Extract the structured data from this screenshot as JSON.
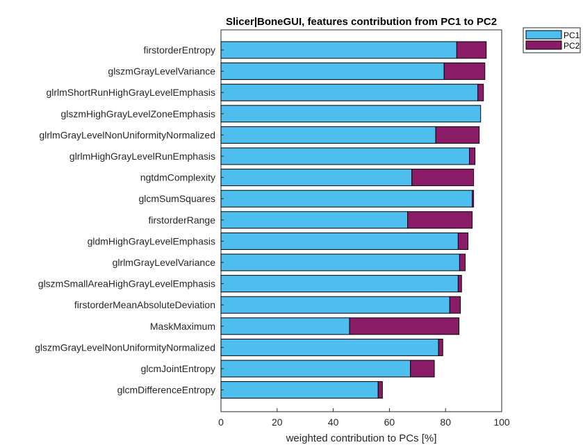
{
  "chart_data": {
    "type": "bar",
    "orientation": "horizontal",
    "stacked": true,
    "title": "Slicer|BoneGUI, features contribution from PC1 to PC2",
    "xlabel": "weighted contribution to PCs [%]",
    "ylabel": "",
    "xlim": [
      0,
      100
    ],
    "xticks": [
      0,
      20,
      40,
      60,
      80,
      100
    ],
    "grid": false,
    "legend_position": "top-right, outside plot",
    "categories": [
      "firstorderEntropy",
      "glszmGrayLevelVariance",
      "glrlmShortRunHighGrayLevelEmphasis",
      "glszmHighGrayLevelZoneEmphasis",
      "glrlmGrayLevelNonUniformityNormalized",
      "glrlmHighGrayLevelRunEmphasis",
      "ngtdmComplexity",
      "glcmSumSquares",
      "firstorderRange",
      "gldmHighGrayLevelEmphasis",
      "glrlmGrayLevelVariance",
      "glszmSmallAreaHighGrayLevelEmphasis",
      "firstorderMeanAbsoluteDeviation",
      "MaskMaximum",
      "glszmGrayLevelNonUniformityNormalized",
      "glcmJointEntropy",
      "glcmDifferenceEntropy"
    ],
    "series": [
      {
        "name": "PC1",
        "color": "#4DBEEE",
        "values": [
          84,
          79.5,
          91.5,
          92.5,
          76.5,
          88.5,
          68,
          89.5,
          66.5,
          84.5,
          85,
          84.5,
          81.5,
          45.8,
          77.5,
          67.5,
          56
        ]
      },
      {
        "name": "PC2",
        "color": "#8A1C67",
        "values": [
          10.5,
          14.5,
          2,
          0,
          15.5,
          2,
          22,
          0.5,
          23,
          3.5,
          2,
          1.2,
          3.8,
          39,
          1.5,
          8.5,
          1.5
        ]
      }
    ]
  }
}
